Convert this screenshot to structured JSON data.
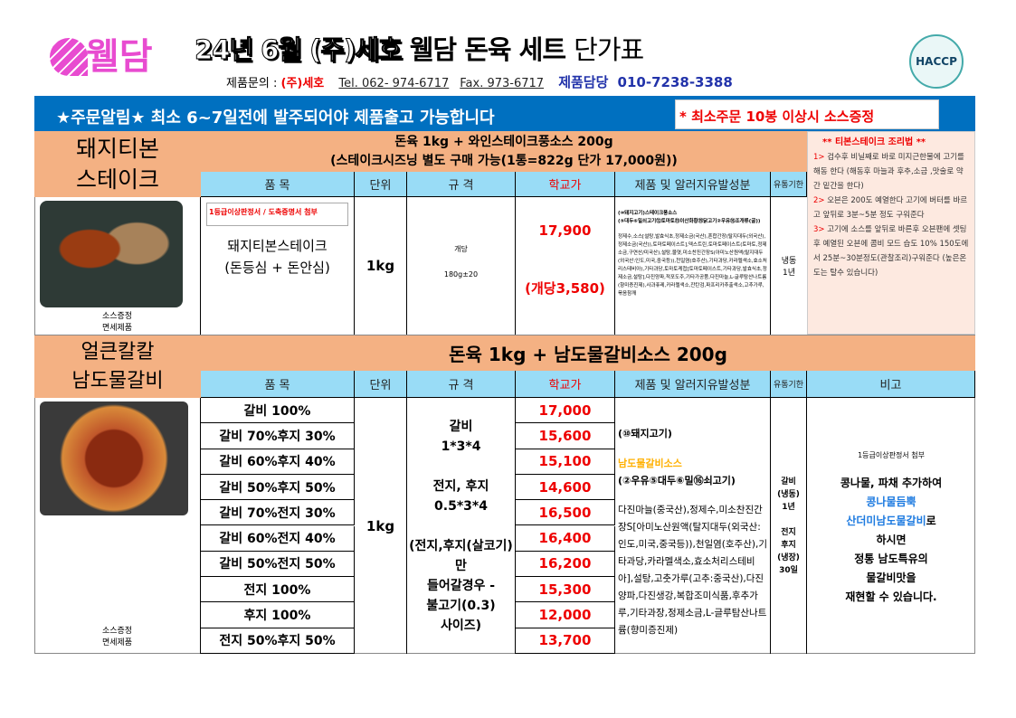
{
  "header": {
    "logo": "웰담",
    "title_part1": "24년 6월 (주)세호",
    "title_part2": "웰담 돈육 세트",
    "title_part3": "단가표",
    "contact_label": "제품문의 :",
    "company": "(주)세호",
    "tel": "Tel. 062- 974-6717",
    "fax": "Fax. 973-6717",
    "manager_label": "제품담당",
    "manager_phone": "010-7238-3388",
    "haccp": "HACCP"
  },
  "banner": {
    "notice": "★주문알림★ 최소 6~7일전에 발주되어야 제품출고 가능합니다",
    "promo": "* 최소주문 10봉 이상시 소스증정"
  },
  "columns": {
    "item": "품  목",
    "unit": "단위",
    "spec": "규  격",
    "price": "학교가",
    "ingredients": "제품 및 알러지유발성분",
    "shelf": "유통기한",
    "note": "비고"
  },
  "section1": {
    "name": "돼지티본\n스테이크",
    "title1": "돈육 1kg + 와인스테이크풍소스 200g",
    "title2": "(스테이크시즈닝 별도 구매 가능(1통=822g 단가 17,000원))",
    "image_caption": "소스증정\n면세제품",
    "cert": "1등급이상판정서 / 도축증명서 첨부",
    "item": "돼지티본스테이크\n(돈등심 + 돈안심)",
    "unit": "1kg",
    "spec1": "개당",
    "spec2": "180g±20",
    "price": "17,900",
    "price_each": "(개당3,580)",
    "ingredients_allergy": "(⑩돼지고기)스테이크풍소스\n(⑤대두⑥밀쇠고기⑫토마토⑬이산화황⑮닭고기②우유⑯조개류(굴))",
    "ingredients": "정제수,소스[설탕,발효식초,정제소금(국산),혼합간장(탈지대두(외국산),정제소금(국산)),토마토페이스트],덱스트린,토마토페이스트(토마토,정제소금,구연산/미국산),설탕,물엿,미소찬진간장S(아미노산원액(탈지대두(외국산:인도,미국,중국등)),천일염(호주산),기타과당,카라멜색소,효소처리스테비아),기타과당,토마토케첩[토마토페이스트,기타과당,발효식초,정제소금,설탕],다진양파,적포도주,기타가공품,다진마늘,L-글루탐산나트륨(향미증진제),사과퓨레,카라멜색소,잔탄검,파프리카추출색소,고추가루,볶음참깨",
    "shelf": "냉동\n1년",
    "recipe": {
      "title": "** 티본스테이크 조리법 **",
      "steps": [
        {
          "num": "1>",
          "text": "검수후 비닐째로 바로 미지근한물에 고기를 해동 한다 (해동후 마늘과 후추,소금 ,맛술로 약간 밑간을 한다)"
        },
        {
          "num": "2>",
          "text": "오븐은 200도 예열한다  고기에 버터를 바르고 앞뒤로 3분~5분 정도 구워준다"
        },
        {
          "num": "3>",
          "text": "고기에 소스를 앞뒤로 바른후 오븐팬에 셋팅후 예열된 오븐에 콤비 모드 습도 10% 150도에서 25분~30분정도(관찰조리)구워준다 (높은온도는 탈수 있습니다)"
        }
      ]
    }
  },
  "section2": {
    "name": "얼큰칼칼\n남도물갈비",
    "title": "돈육 1kg + 남도물갈비소스 200g",
    "image_caption": "소스증정\n면세제품",
    "unit": "1kg",
    "rows": [
      {
        "item": "갈비 100%",
        "price": "17,000"
      },
      {
        "item": "갈비 70%후지 30%",
        "price": "15,600"
      },
      {
        "item": "갈비 60%후지 40%",
        "price": "15,100"
      },
      {
        "item": "갈비 50%후지 50%",
        "price": "14,600"
      },
      {
        "item": "갈비 70%전지 30%",
        "price": "16,500"
      },
      {
        "item": "갈비 60%전지 40%",
        "price": "16,400"
      },
      {
        "item": "갈비 50%전지 50%",
        "price": "16,200"
      },
      {
        "item": "전지 100%",
        "price": "15,300"
      },
      {
        "item": "후지 100%",
        "price": "12,000"
      },
      {
        "item": "전지 50%후지 50%",
        "price": "13,700"
      }
    ],
    "spec": "갈비\n1*3*4\n\n전지, 후지\n0.5*3*4\n\n(전지,후지(살코기)만\n들어갈경우 -\n불고기(0.3)\n사이즈)",
    "ing_meat": "(⑩돼지고기)",
    "ing_sauce": "남도물갈비소스",
    "ing_allergy": "(②우유⑤대두⑥밀⑯쇠고기)",
    "ingredients": "다진마늘(중국산),정제수,미소찬진간장S[아미노산원액(탈지대두(외국산:인도,미국,중국등)),천일염(호주산),기타과당,카라멜색소,효소처리스테비아],설탕,고춧가루(고추:중국산),다진양파,다진생강,복합조미식품,후추가루,기타과장,정제소금,L-글루탐산나트륨(향미증진제)",
    "shelf": "갈비\n(냉동)\n1년\n\n전지\n후지\n(냉장)\n30일",
    "note_cert": "1등급이상판정서 첨부",
    "note1": "콩나물, 파채 추가하여",
    "note_blue1": "콩나물듬뿍",
    "note_blue2": "산더미남도물갈비",
    "note2": "로",
    "note3": "하시면\n정통 남도특유의\n물갈비맛을\n재현할 수 있습니다."
  },
  "colors": {
    "banner": "#0070c0",
    "salmon": "#f4b183",
    "header_blue": "#99dcf6",
    "price_red": "#ee0000",
    "recipe_bg": "#fde9e0"
  }
}
